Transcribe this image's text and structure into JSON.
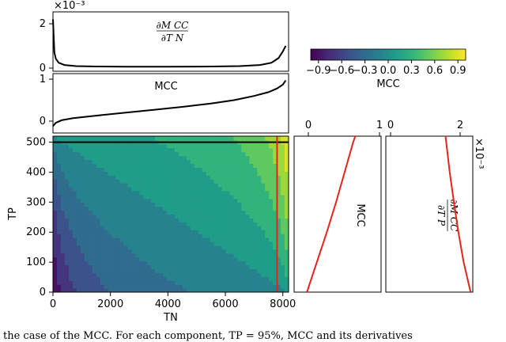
{
  "chart_data": [
    {
      "type": "line",
      "title": "∂MCC/∂TN",
      "frac_num": "∂M CC",
      "frac_den": "∂T N",
      "yticks": [
        "0",
        "2"
      ],
      "ylim": [
        0,
        2.2
      ],
      "exponent": "×10⁻³",
      "x": [
        0,
        50,
        100,
        200,
        400,
        800,
        1500,
        2500,
        4000,
        5500,
        6500,
        7200,
        7600,
        7850,
        8000,
        8100
      ],
      "y": [
        2.2,
        0.7,
        0.42,
        0.24,
        0.14,
        0.09,
        0.07,
        0.06,
        0.06,
        0.07,
        0.09,
        0.14,
        0.24,
        0.45,
        0.75,
        1.0
      ]
    },
    {
      "type": "line",
      "title": "MCC",
      "yticks": [
        "0",
        "1"
      ],
      "ylim": [
        -0.2,
        1.0
      ],
      "x": [
        0,
        100,
        300,
        700,
        1500,
        2500,
        3500,
        4500,
        5500,
        6300,
        7000,
        7500,
        7800,
        8000,
        8100
      ],
      "y": [
        -0.12,
        -0.04,
        0.02,
        0.07,
        0.13,
        0.2,
        0.27,
        0.34,
        0.42,
        0.5,
        0.6,
        0.69,
        0.78,
        0.87,
        0.97
      ]
    },
    {
      "type": "heatmap",
      "xlabel": "TN",
      "ylabel": "TP",
      "xticks": [
        "0",
        "2000",
        "4000",
        "6000",
        "8000"
      ],
      "yticks": [
        "0",
        "100",
        "200",
        "300",
        "400",
        "500"
      ],
      "xlim": [
        0,
        8200
      ],
      "ylim": [
        0,
        520
      ],
      "hline_tp": 500,
      "vline_tn": 7800,
      "colorbar": {
        "label": "MCC",
        "ticks": [
          "−0.9",
          "−0.6",
          "−0.3",
          "0.0",
          "0.3",
          "0.6",
          "0.9"
        ],
        "range": [
          -1,
          1
        ],
        "colors": [
          "#440154",
          "#482878",
          "#3e4a89",
          "#31688e",
          "#26828e",
          "#1f9e89",
          "#35b779",
          "#6ece58",
          "#b5de2b",
          "#fde725"
        ]
      }
    },
    {
      "type": "line",
      "title": "MCC",
      "xticks": [
        "0",
        "1"
      ],
      "xlim": [
        0,
        1
      ],
      "tp": [
        0,
        100,
        200,
        300,
        400,
        500,
        520
      ],
      "values": [
        -0.02,
        0.12,
        0.26,
        0.39,
        0.51,
        0.63,
        0.66
      ]
    },
    {
      "type": "line",
      "title": "∂MCC/∂TP",
      "frac_num": "∂M CC",
      "frac_den": "∂T P",
      "xticks": [
        "0",
        "2"
      ],
      "xlim": [
        0,
        2.1
      ],
      "exponent": "×10⁻³",
      "tp": [
        0,
        100,
        200,
        300,
        400,
        500,
        520
      ],
      "values": [
        2.3,
        2.1,
        1.95,
        1.82,
        1.7,
        1.6,
        1.58
      ]
    }
  ],
  "caption_text": "the case of the MCC. For each component, TP = 95%, MCC and its derivatives"
}
